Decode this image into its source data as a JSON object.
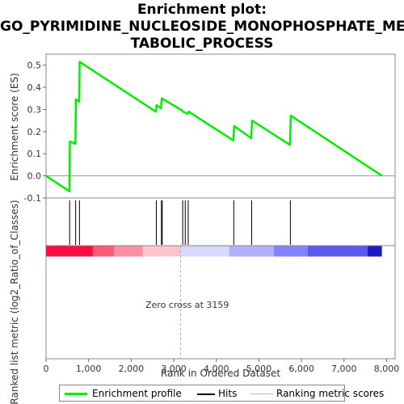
{
  "chart_data": {
    "type": "line",
    "title": "Enrichment plot: GO_PYRIMIDINE_NUCLEOSIDE_MONOPHOSPHATE_METABOLIC_PROCESS",
    "title_lines": [
      "Enrichment plot:",
      "GO_PYRIMIDINE_NUCLEOSIDE_MONOPHOSPHATE_ME",
      "TABOLIC_PROCESS"
    ],
    "xlabel": "Rank in Ordered Dataset",
    "ylabel_top": "Enrichment score (ES)",
    "ylabel_bottom": "Ranked list metric (log2_Ratio_of_Classes)",
    "xlim": [
      0,
      8200
    ],
    "ylim": [
      -0.1,
      0.55
    ],
    "x_ticks": [
      0,
      1000,
      2000,
      3000,
      4000,
      5000,
      6000,
      7000,
      8000
    ],
    "x_tick_labels": [
      "0",
      "1,000",
      "2,000",
      "3,000",
      "4,000",
      "5,000",
      "6,000",
      "7,000",
      "8,000"
    ],
    "y_ticks": [
      -0.1,
      0.0,
      0.1,
      0.2,
      0.3,
      0.4,
      0.5
    ],
    "y_tick_labels": [
      "-0.1",
      "0.0",
      "0.1",
      "0.2",
      "0.3",
      "0.4",
      "0.5"
    ],
    "series": [
      {
        "name": "Enrichment profile",
        "color": "#00ee00",
        "x": [
          0,
          550,
          560,
          690,
          700,
          780,
          790,
          2580,
          2600,
          2700,
          2720,
          3200,
          3220,
          3330,
          3350,
          4400,
          4420,
          4820,
          4840,
          5730,
          5750,
          7890
        ],
        "y": [
          0.0,
          -0.07,
          0.155,
          0.145,
          0.345,
          0.335,
          0.515,
          0.29,
          0.32,
          0.305,
          0.35,
          0.295,
          0.29,
          0.28,
          0.29,
          0.16,
          0.225,
          0.17,
          0.25,
          0.14,
          0.272,
          0.0
        ]
      }
    ],
    "hits": [
      555,
      695,
      785,
      2590,
      2710,
      2730,
      3210,
      3270,
      3340,
      4410,
      4830,
      5740
    ],
    "zero_cross_label": "Zero cross at 3159",
    "zero_cross_x": 3159,
    "metric_bar": [
      {
        "from": 0,
        "to": 1100,
        "color": "#ff0d40"
      },
      {
        "from": 1100,
        "to": 1600,
        "color": "#ff5a78"
      },
      {
        "from": 1600,
        "to": 2270,
        "color": "#ff8ea2"
      },
      {
        "from": 2270,
        "to": 3159,
        "color": "#ffc4cf"
      },
      {
        "from": 3159,
        "to": 4300,
        "color": "#d8d8ff"
      },
      {
        "from": 4300,
        "to": 5350,
        "color": "#b0b0ff"
      },
      {
        "from": 5350,
        "to": 6150,
        "color": "#8282ff"
      },
      {
        "from": 6150,
        "to": 7550,
        "color": "#5a5aee"
      },
      {
        "from": 7550,
        "to": 7890,
        "color": "#1a1acc"
      }
    ],
    "legend": [
      {
        "label": "Enrichment profile",
        "color": "#00ee00"
      },
      {
        "label": "Hits",
        "color": "#000000"
      },
      {
        "label": "Ranking metric scores",
        "color": "#bbbbbb"
      }
    ],
    "legend_position": "bottom",
    "grid": false
  }
}
